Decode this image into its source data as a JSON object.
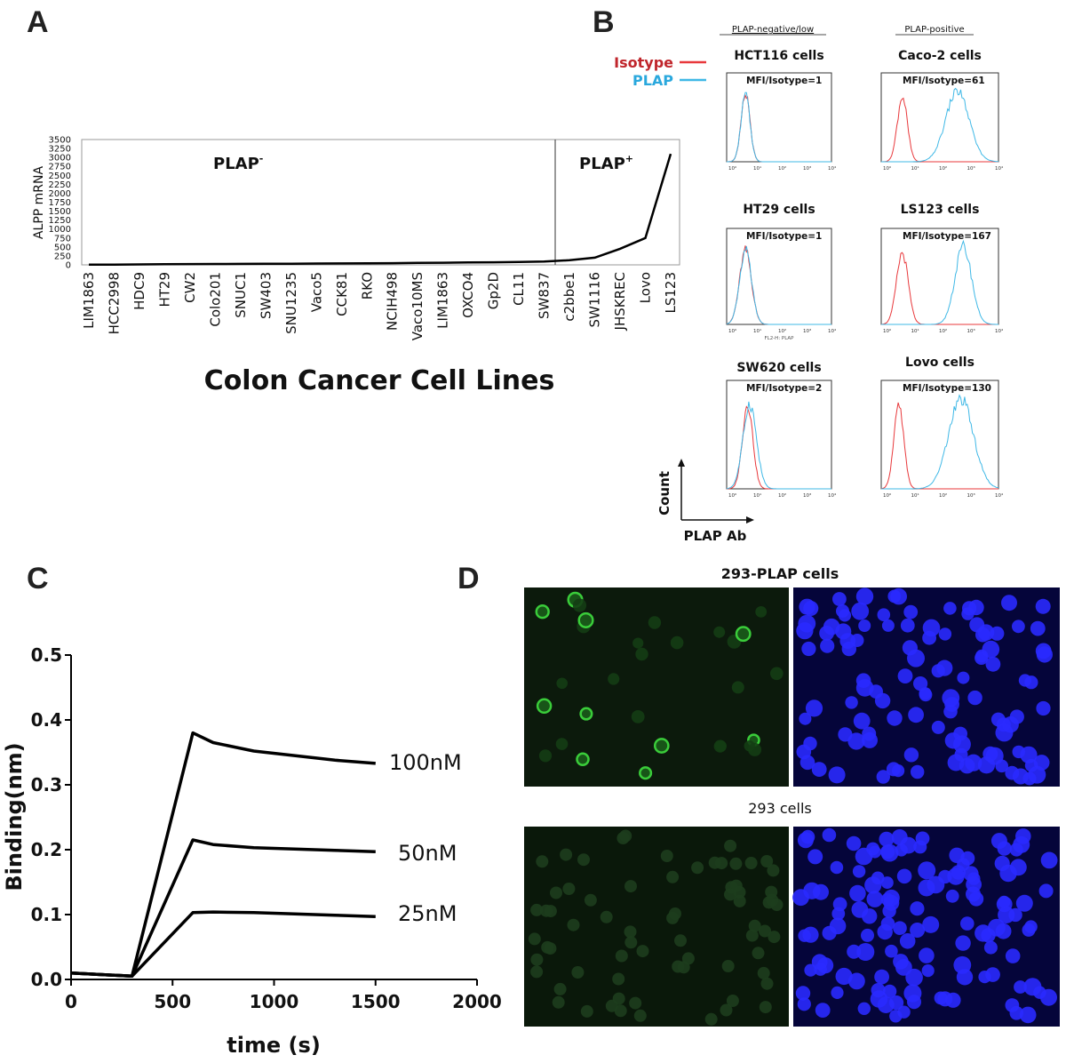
{
  "panel_labels": [
    "A",
    "B",
    "C",
    "D"
  ],
  "colors": {
    "isotype": "#e8383b",
    "plap": "#3fb8e6",
    "line": "#111111",
    "green": "#1e8a1e",
    "blue": "#2424ff"
  },
  "chart_data": [
    {
      "type": "line",
      "panel": "A",
      "ylabel": "ALPP mRNA",
      "xlabel": "Colon  Cancer Cell Lines",
      "yticks": [
        0,
        250,
        500,
        750,
        1000,
        1250,
        1500,
        1750,
        2000,
        2250,
        2500,
        2750,
        3000,
        3250,
        3500
      ],
      "ylim": [
        0,
        3500
      ],
      "grid": false,
      "categories": [
        "LIM1863",
        "HCC2998",
        "HDC9",
        "HT29",
        "CW2",
        "Colo201",
        "SNUC1",
        "SW403",
        "SNU1235",
        "Vaco5",
        "CCK81",
        "RKO",
        "NCIH498",
        "Vaco10MS",
        "LIM1863",
        "OXCO4",
        "Gp2D",
        "CL11",
        "SW837",
        "c2bbe1",
        "SW1116",
        "JHSKREC",
        "Lovo",
        "LS123"
      ],
      "values": [
        5,
        8,
        12,
        18,
        22,
        25,
        28,
        30,
        33,
        36,
        40,
        44,
        48,
        55,
        60,
        66,
        72,
        80,
        95,
        130,
        200,
        450,
        750,
        3100
      ],
      "regions": [
        {
          "label": "PLAP",
          "superscript": "-"
        },
        {
          "label": "PLAP",
          "superscript": "+"
        }
      ]
    },
    {
      "type": "line",
      "panel": "B",
      "column_headers": [
        "PLAP-negative/low",
        "PLAP-positive"
      ],
      "legend": [
        "Isotype",
        "PLAP"
      ],
      "axis_xlabel": "PLAP Ab",
      "axis_ylabel": "Count",
      "xaxis_caption": "FL2-H: PLAP",
      "histograms": [
        {
          "title": "HCT116 cells",
          "mfi": "MFI/Isotype=1",
          "isotype_peak": 0.18,
          "plap_peak": 0.18,
          "isotype_width": 0.06,
          "plap_width": 0.06
        },
        {
          "title": "HT29 cells",
          "mfi": "MFI/Isotype=1",
          "isotype_peak": 0.18,
          "plap_peak": 0.18,
          "isotype_width": 0.08,
          "plap_width": 0.08
        },
        {
          "title": "SW620 cells",
          "mfi": "MFI/Isotype=2",
          "isotype_peak": 0.2,
          "plap_peak": 0.22,
          "isotype_width": 0.07,
          "plap_width": 0.09
        },
        {
          "title": "Caco-2 cells",
          "mfi": "MFI/Isotype=61",
          "isotype_peak": 0.18,
          "plap_peak": 0.65,
          "isotype_width": 0.06,
          "plap_width": 0.14
        },
        {
          "title": "LS123 cells",
          "mfi": "MFI/Isotype=167",
          "isotype_peak": 0.18,
          "plap_peak": 0.7,
          "isotype_width": 0.07,
          "plap_width": 0.1
        },
        {
          "title": "Lovo cells",
          "mfi": "MFI/Isotype=130",
          "isotype_peak": 0.15,
          "plap_peak": 0.68,
          "isotype_width": 0.06,
          "plap_width": 0.15
        }
      ],
      "xtick_labels": [
        "10⁰",
        "10¹",
        "10²",
        "10³",
        "10⁴"
      ]
    },
    {
      "type": "line",
      "panel": "C",
      "xlabel": "time (s)",
      "ylabel": "Binding(nm)",
      "xlim": [
        0,
        2000
      ],
      "ylim": [
        0,
        0.5
      ],
      "xticks": [
        0,
        500,
        1000,
        1500,
        2000
      ],
      "yticks": [
        0.0,
        0.1,
        0.2,
        0.3,
        0.4,
        0.5
      ],
      "series": [
        {
          "name": "100nM",
          "x": [
            0,
            300,
            600,
            700,
            900,
            1100,
            1300,
            1500
          ],
          "y": [
            0.01,
            0.005,
            0.38,
            0.365,
            0.352,
            0.345,
            0.338,
            0.333
          ]
        },
        {
          "name": "50nM",
          "x": [
            0,
            300,
            600,
            700,
            900,
            1100,
            1300,
            1500
          ],
          "y": [
            0.01,
            0.005,
            0.215,
            0.208,
            0.203,
            0.201,
            0.199,
            0.197
          ]
        },
        {
          "name": "25nM",
          "x": [
            0,
            300,
            600,
            700,
            900,
            1100,
            1300,
            1500
          ],
          "y": [
            0.01,
            0.005,
            0.103,
            0.104,
            0.103,
            0.101,
            0.099,
            0.097
          ]
        }
      ]
    }
  ],
  "panel_d": {
    "top_label": "293-PLAP cells",
    "bottom_label": "293 cells"
  }
}
